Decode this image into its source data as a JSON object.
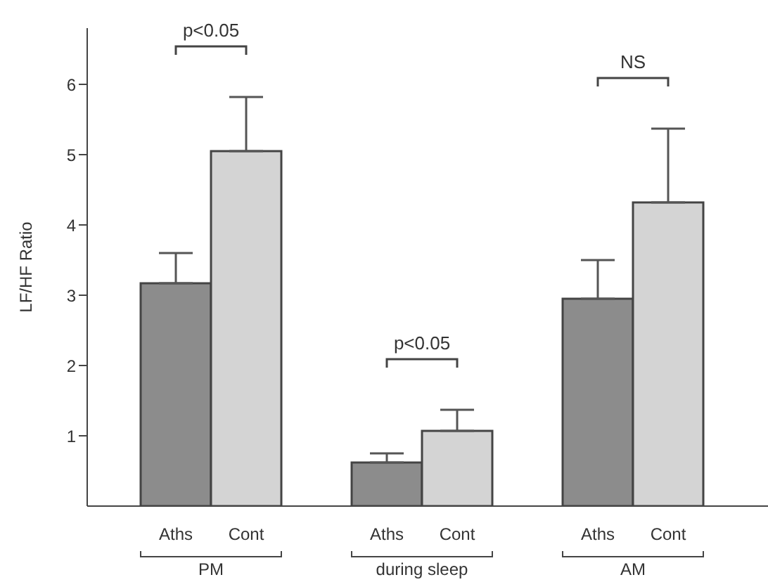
{
  "chart_data": {
    "type": "bar",
    "ylabel": "LF/HF Ratio",
    "categories": [
      "PM",
      "during sleep",
      "AM"
    ],
    "series": [
      {
        "name": "Aths",
        "color": "#8c8c8c",
        "values": [
          3.17,
          0.62,
          2.95
        ],
        "errors": [
          [
            3.17,
            3.6
          ],
          [
            0.62,
            0.75
          ],
          [
            2.95,
            3.5
          ]
        ]
      },
      {
        "name": "Cont",
        "color": "#d4d4d4",
        "values": [
          5.05,
          1.07,
          4.32
        ],
        "errors": [
          [
            5.05,
            5.82
          ],
          [
            1.07,
            1.37
          ],
          [
            4.32,
            5.37
          ]
        ]
      }
    ],
    "ylim": [
      0,
      6.8
    ],
    "yticks": [
      1,
      2,
      3,
      4,
      5,
      6
    ],
    "grid": false,
    "legend": false,
    "annotations": [
      "p<0.05",
      "p<0.05",
      "NS"
    ]
  }
}
